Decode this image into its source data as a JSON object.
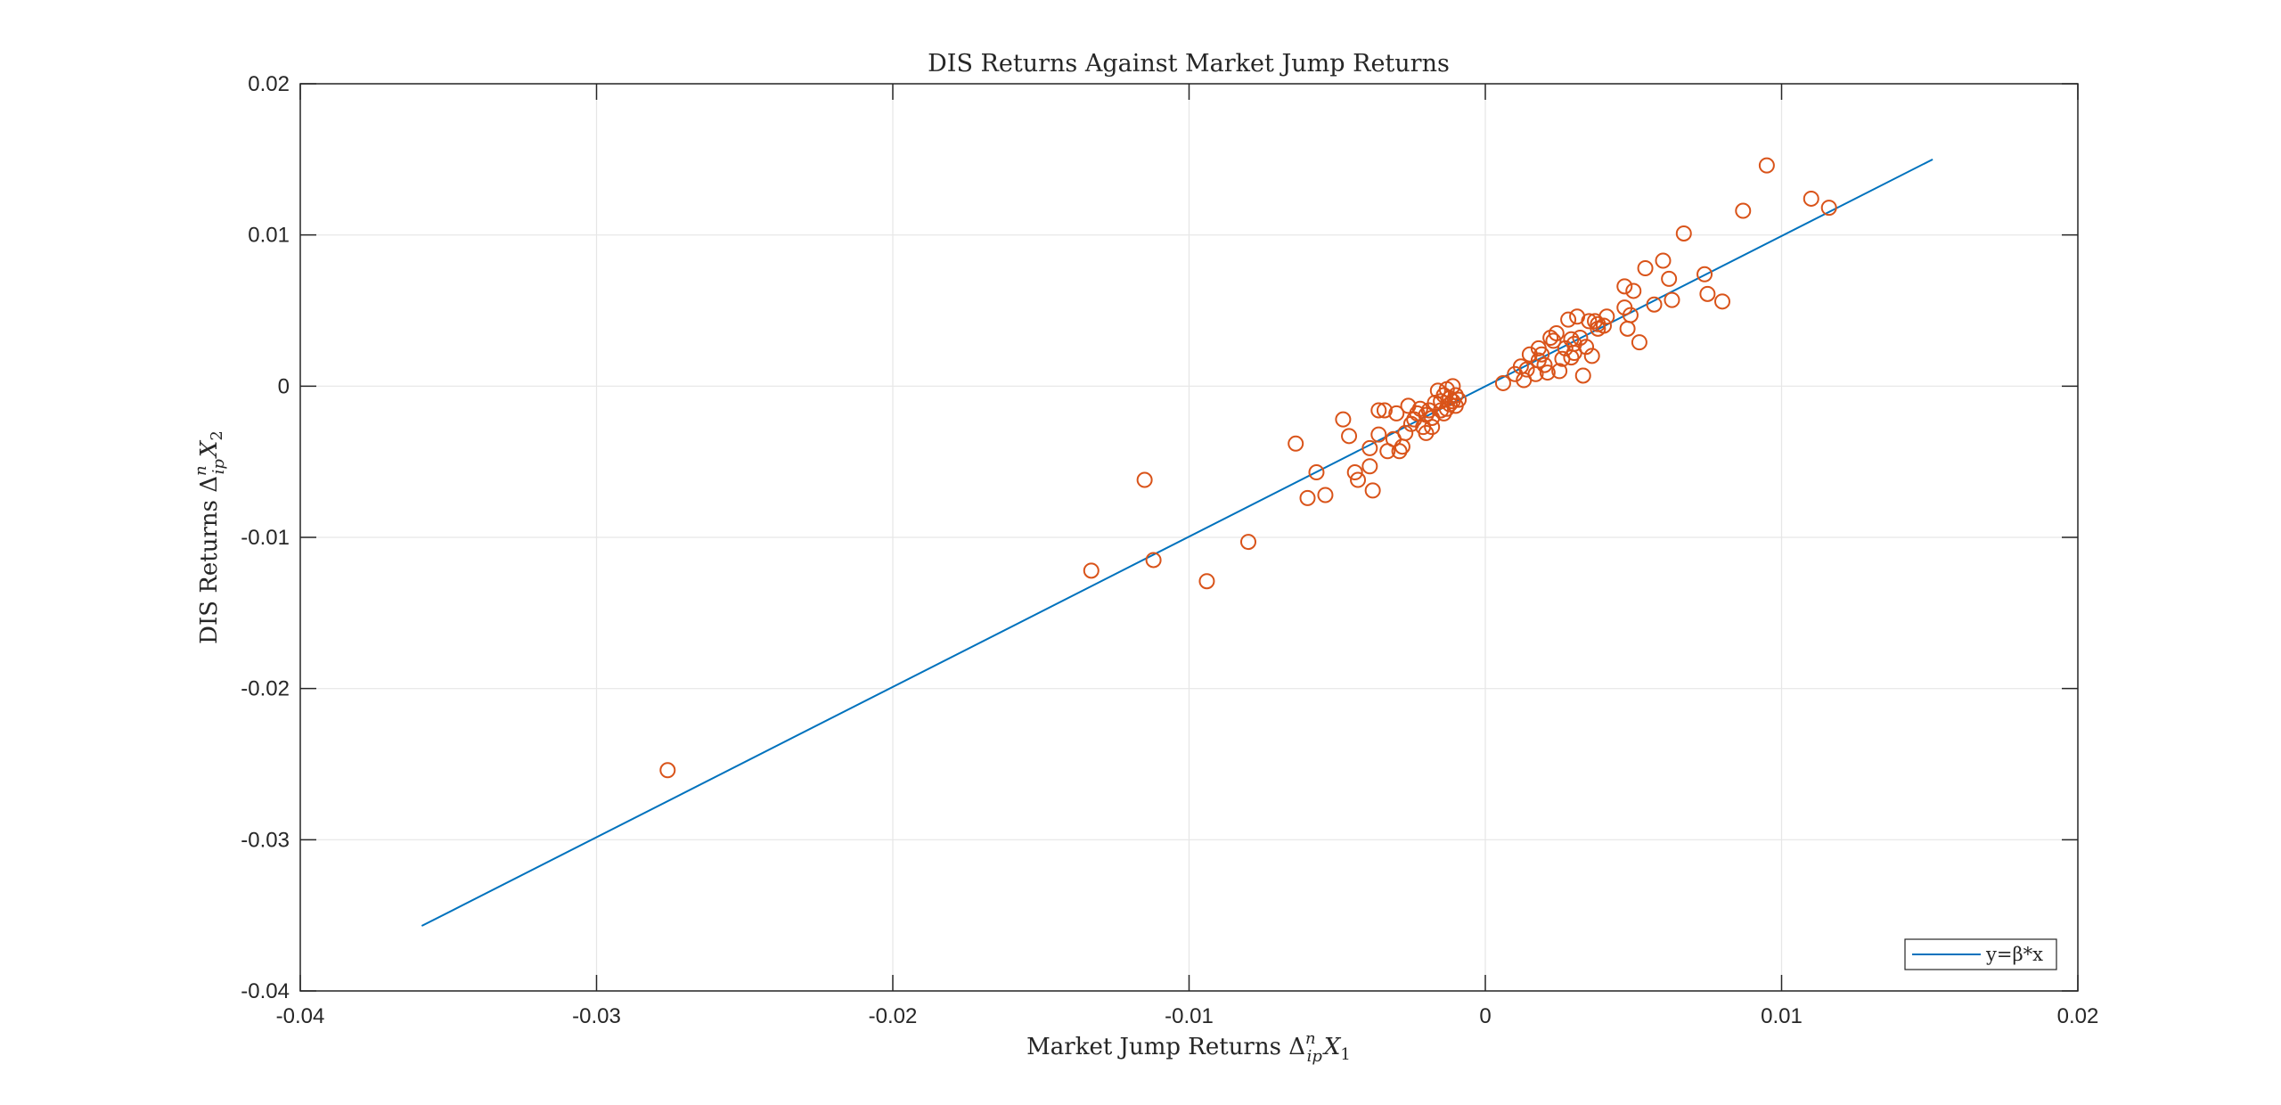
{
  "chart_data": {
    "type": "scatter",
    "title": "DIS Returns Against Market Jump Returns",
    "xlabel": "Market Jump Returns Δ",
    "xlabel_math": {
      "sup": "n",
      "sub": "ip",
      "var": "X",
      "var_sub": "1"
    },
    "ylabel": "DIS Returns Δ",
    "ylabel_math": {
      "sup": "n",
      "sub": "ip",
      "var": "X",
      "var_sub": "2"
    },
    "xlim": [
      -0.04,
      0.02
    ],
    "ylim": [
      -0.04,
      0.02
    ],
    "xticks": [
      -0.04,
      -0.03,
      -0.02,
      -0.01,
      0,
      0.01,
      0.02
    ],
    "yticks": [
      -0.04,
      -0.03,
      -0.02,
      -0.01,
      0,
      0.01,
      0.02
    ],
    "xtick_labels": [
      "-0.04",
      "-0.03",
      "-0.02",
      "-0.01",
      "0",
      "0.01",
      "0.02"
    ],
    "ytick_labels": [
      "-0.04",
      "-0.03",
      "-0.02",
      "-0.01",
      "0",
      "0.01",
      "0.02"
    ],
    "grid": true,
    "legend": {
      "placement": "bottom-right",
      "entries": [
        "y=β*x"
      ]
    },
    "colors": {
      "scatter": "#D95319",
      "fit": "#0072BD",
      "grid": "#e6e6e6",
      "axes": "#262626"
    },
    "series": [
      {
        "name": "y=β*x",
        "kind": "line",
        "x": [
          -0.0359,
          0.0151
        ],
        "y": [
          -0.0357,
          0.015
        ]
      },
      {
        "kind": "scatter",
        "x": [
          -0.0276,
          -0.0133,
          -0.0115,
          -0.0112,
          -0.0094,
          -0.008,
          -0.0064,
          -0.006,
          -0.0057,
          -0.0054,
          -0.0048,
          -0.0046,
          -0.0044,
          -0.0043,
          -0.0039,
          -0.0039,
          -0.0038,
          -0.0036,
          -0.0036,
          -0.0034,
          -0.0033,
          -0.0031,
          -0.003,
          -0.0029,
          -0.0028,
          -0.0027,
          -0.0026,
          -0.0025,
          -0.0024,
          -0.0023,
          -0.0022,
          -0.0021,
          -0.002,
          -0.002,
          -0.0019,
          -0.0018,
          -0.0018,
          -0.0017,
          -0.0016,
          -0.0015,
          -0.0015,
          -0.0014,
          -0.0014,
          -0.0013,
          -0.0013,
          -0.0012,
          -0.0012,
          -0.0011,
          -0.0011,
          -0.001,
          -0.001,
          -0.0009,
          0.0006,
          0.001,
          0.0012,
          0.0013,
          0.0014,
          0.0015,
          0.0017,
          0.0018,
          0.0018,
          0.0019,
          0.002,
          0.0021,
          0.0022,
          0.0023,
          0.0024,
          0.0025,
          0.0026,
          0.0027,
          0.0028,
          0.0029,
          0.0029,
          0.003,
          0.003,
          0.0031,
          0.0032,
          0.0033,
          0.0034,
          0.0035,
          0.0036,
          0.0037,
          0.0038,
          0.0038,
          0.004,
          0.0041,
          0.0047,
          0.0047,
          0.0048,
          0.0049,
          0.005,
          0.0052,
          0.0054,
          0.0057,
          0.006,
          0.0062,
          0.0063,
          0.0067,
          0.0074,
          0.0075,
          0.008,
          0.0087,
          0.0095,
          0.011,
          0.0116
        ],
        "y": [
          -0.0254,
          -0.0122,
          -0.0062,
          -0.0115,
          -0.0129,
          -0.0103,
          -0.0038,
          -0.0074,
          -0.0057,
          -0.0072,
          -0.0022,
          -0.0033,
          -0.0057,
          -0.0062,
          -0.0041,
          -0.0053,
          -0.0069,
          -0.0016,
          -0.0032,
          -0.0016,
          -0.0043,
          -0.0035,
          -0.0018,
          -0.0043,
          -0.004,
          -0.0031,
          -0.0013,
          -0.0025,
          -0.0022,
          -0.0018,
          -0.0015,
          -0.0027,
          -0.0019,
          -0.0031,
          -0.0016,
          -0.0021,
          -0.0027,
          -0.0011,
          -0.0003,
          -0.0016,
          -0.001,
          -0.0018,
          -0.0006,
          -0.0002,
          -0.0015,
          -0.0008,
          -0.0012,
          0.0,
          -0.001,
          -0.0006,
          -0.0013,
          -0.0009,
          0.0002,
          0.0008,
          0.0013,
          0.0004,
          0.0011,
          0.0021,
          0.0008,
          0.0025,
          0.0017,
          0.0021,
          0.0014,
          0.0009,
          0.0032,
          0.003,
          0.0035,
          0.001,
          0.0018,
          0.0025,
          0.0044,
          0.0031,
          0.0019,
          0.0028,
          0.0022,
          0.0046,
          0.0032,
          0.0007,
          0.0026,
          0.0043,
          0.002,
          0.0043,
          0.0041,
          0.0038,
          0.004,
          0.0046,
          0.0066,
          0.0052,
          0.0038,
          0.0047,
          0.0063,
          0.0029,
          0.0078,
          0.0054,
          0.0083,
          0.0071,
          0.0057,
          0.0101,
          0.0074,
          0.0061,
          0.0056,
          0.0116,
          0.0146,
          0.0124,
          0.0118
        ]
      }
    ]
  }
}
